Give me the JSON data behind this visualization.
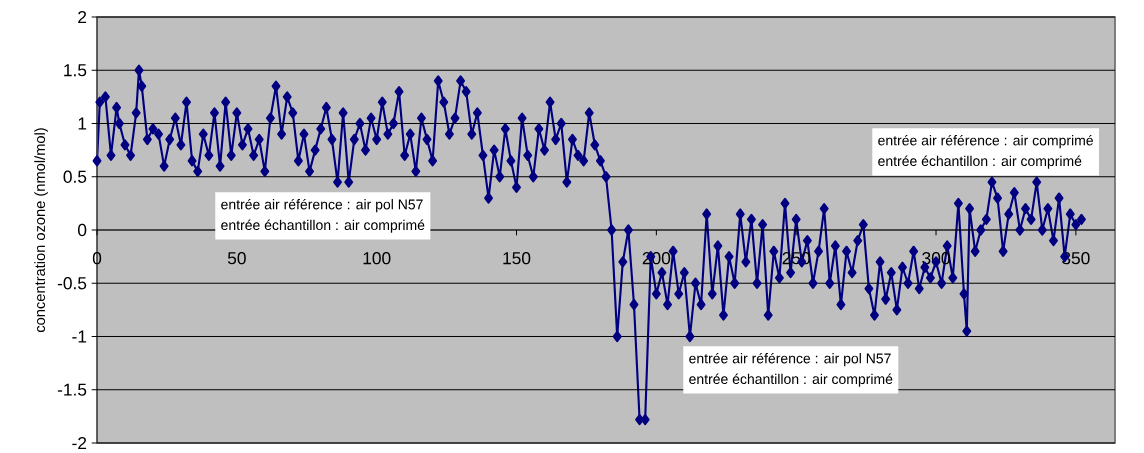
{
  "chart_data": {
    "type": "line",
    "ylabel": "concentration ozone (nmol/mol)",
    "xlim": [
      0,
      364
    ],
    "xticks": [
      0,
      50,
      100,
      150,
      200,
      250,
      300,
      350
    ],
    "ylim": [
      -2,
      2
    ],
    "yticks": [
      -2,
      -1.5,
      -1,
      -0.5,
      0,
      0.5,
      1,
      1.5,
      2
    ],
    "grid": "y",
    "marker": "diamond",
    "line_style": "solid",
    "annotations": [
      "entrée air référence : air pol N57",
      "entrée échantillon : air comprimé",
      "entrée air référence : air pol N57",
      "entrée échantillon : air comprimé",
      "entrée air référence : air comprimé",
      "entrée échantillon : air comprimé"
    ],
    "x": [
      0,
      1,
      3,
      5,
      7,
      8,
      10,
      12,
      14,
      15,
      16,
      18,
      20,
      22,
      24,
      26,
      28,
      30,
      32,
      34,
      36,
      38,
      40,
      42,
      44,
      46,
      48,
      50,
      52,
      54,
      56,
      58,
      60,
      62,
      64,
      66,
      68,
      70,
      72,
      74,
      76,
      78,
      80,
      82,
      84,
      86,
      88,
      90,
      92,
      94,
      96,
      98,
      100,
      102,
      104,
      106,
      108,
      110,
      112,
      114,
      116,
      118,
      120,
      122,
      124,
      126,
      128,
      130,
      132,
      134,
      136,
      138,
      140,
      142,
      144,
      146,
      148,
      150,
      152,
      154,
      156,
      158,
      160,
      162,
      164,
      166,
      168,
      170,
      172,
      174,
      176,
      178,
      180,
      182,
      184,
      186,
      188,
      190,
      192,
      194,
      196,
      198,
      200,
      202,
      204,
      206,
      208,
      210,
      212,
      214,
      216,
      218,
      220,
      222,
      224,
      226,
      228,
      230,
      232,
      234,
      236,
      238,
      240,
      242,
      244,
      246,
      248,
      250,
      252,
      254,
      256,
      258,
      260,
      262,
      264,
      266,
      268,
      270,
      272,
      274,
      276,
      278,
      280,
      282,
      284,
      286,
      288,
      290,
      292,
      294,
      296,
      298,
      300,
      302,
      304,
      306,
      308,
      310,
      311,
      312,
      314,
      316,
      318,
      320,
      322,
      324,
      326,
      328,
      330,
      332,
      334,
      336,
      338,
      340,
      342,
      344,
      346,
      348,
      350,
      352
    ],
    "series": [
      {
        "color": "#000080",
        "values": [
          0.65,
          1.2,
          1.25,
          0.7,
          1.15,
          1.0,
          0.8,
          0.7,
          1.1,
          1.5,
          1.35,
          0.85,
          0.95,
          0.9,
          0.6,
          0.85,
          1.05,
          0.8,
          1.2,
          0.65,
          0.55,
          0.9,
          0.7,
          1.1,
          0.6,
          1.2,
          0.7,
          1.1,
          0.8,
          0.95,
          0.7,
          0.85,
          0.55,
          1.05,
          1.35,
          0.9,
          1.25,
          1.1,
          0.65,
          0.9,
          0.55,
          0.75,
          0.95,
          1.15,
          0.85,
          0.45,
          1.1,
          0.45,
          0.85,
          1.0,
          0.75,
          1.05,
          0.85,
          1.2,
          0.9,
          1.0,
          1.3,
          0.7,
          0.9,
          0.55,
          1.05,
          0.85,
          0.65,
          1.4,
          1.2,
          0.9,
          1.05,
          1.4,
          1.3,
          0.9,
          1.1,
          0.7,
          0.3,
          0.75,
          0.5,
          0.95,
          0.65,
          0.4,
          1.05,
          0.7,
          0.5,
          0.95,
          0.75,
          1.2,
          0.85,
          1.0,
          0.45,
          0.85,
          0.7,
          0.65,
          1.1,
          0.8,
          0.65,
          0.5,
          0.0,
          -1.0,
          -0.3,
          0.0,
          -0.7,
          -1.78,
          -1.78,
          -0.25,
          -0.6,
          -0.4,
          -0.7,
          -0.2,
          -0.6,
          -0.4,
          -1.0,
          -0.5,
          -0.7,
          0.15,
          -0.6,
          -0.15,
          -0.8,
          -0.25,
          -0.5,
          0.15,
          -0.3,
          0.1,
          -0.5,
          0.05,
          -0.8,
          -0.2,
          -0.45,
          0.25,
          -0.4,
          0.1,
          -0.3,
          -0.1,
          -0.5,
          -0.2,
          0.2,
          -0.5,
          -0.15,
          -0.7,
          -0.2,
          -0.4,
          -0.1,
          0.05,
          -0.55,
          -0.8,
          -0.3,
          -0.65,
          -0.4,
          -0.75,
          -0.35,
          -0.5,
          -0.2,
          -0.55,
          -0.35,
          -0.45,
          -0.3,
          -0.5,
          -0.15,
          -0.45,
          0.25,
          -0.6,
          -0.95,
          0.2,
          -0.2,
          0.0,
          0.1,
          0.45,
          0.3,
          -0.2,
          0.15,
          0.35,
          0.0,
          0.2,
          0.1,
          0.45,
          0.0,
          0.2,
          -0.1,
          0.3,
          -0.25,
          0.15,
          0.05,
          0.1
        ]
      }
    ]
  }
}
